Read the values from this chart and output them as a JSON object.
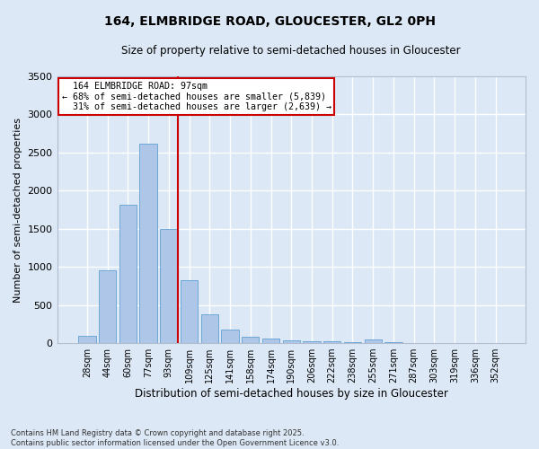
{
  "title_line1": "164, ELMBRIDGE ROAD, GLOUCESTER, GL2 0PH",
  "title_line2": "Size of property relative to semi-detached houses in Gloucester",
  "xlabel": "Distribution of semi-detached houses by size in Gloucester",
  "ylabel": "Number of semi-detached properties",
  "categories": [
    "28sqm",
    "44sqm",
    "60sqm",
    "77sqm",
    "93sqm",
    "109sqm",
    "125sqm",
    "141sqm",
    "158sqm",
    "174sqm",
    "190sqm",
    "206sqm",
    "222sqm",
    "238sqm",
    "255sqm",
    "271sqm",
    "287sqm",
    "303sqm",
    "319sqm",
    "336sqm",
    "352sqm"
  ],
  "values": [
    100,
    950,
    1820,
    2620,
    1500,
    820,
    380,
    180,
    85,
    60,
    40,
    30,
    20,
    15,
    50,
    10,
    5,
    5,
    5,
    5,
    5
  ],
  "bar_color": "#aec6e8",
  "bar_edge_color": "#6fa8d6",
  "vline_index": 4,
  "marker_label": "164 ELMBRIDGE ROAD: 97sqm",
  "pct_smaller": "68% of semi-detached houses are smaller (5,839)",
  "pct_larger": "31% of semi-detached houses are larger (2,639)",
  "vline_color": "#cc0000",
  "ylim": [
    0,
    3500
  ],
  "yticks": [
    0,
    500,
    1000,
    1500,
    2000,
    2500,
    3000,
    3500
  ],
  "footnote": "Contains HM Land Registry data © Crown copyright and database right 2025.\nContains public sector information licensed under the Open Government Licence v3.0.",
  "background_color": "#dce8f5",
  "grid_color": "#ffffff",
  "title_fontsize": 10,
  "subtitle_fontsize": 8.5,
  "ylabel_fontsize": 8,
  "xlabel_fontsize": 8.5,
  "tick_fontsize": 7,
  "footnote_fontsize": 6.0
}
